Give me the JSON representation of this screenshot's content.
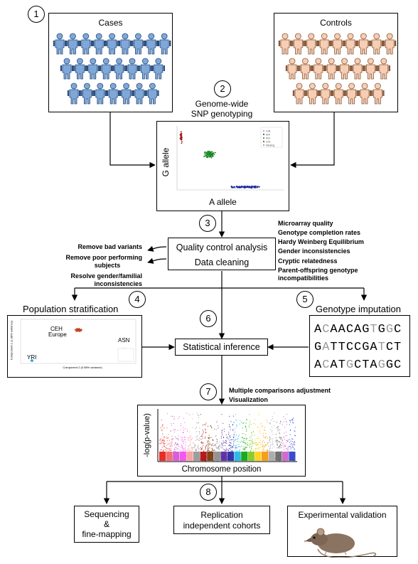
{
  "steps": [
    "1",
    "2",
    "3",
    "4",
    "5",
    "6",
    "7",
    "8"
  ],
  "cases": {
    "label": "Cases",
    "color": "#7fa8d8",
    "stroke": "#2a4f80"
  },
  "controls": {
    "label": "Controls",
    "color": "#f7cdb3",
    "stroke": "#8a5a3a"
  },
  "genotyping": {
    "title_line1": "Genome-wide",
    "title_line2": "SNP genotyping",
    "ylabel": "G allele",
    "xlabel": "A allele",
    "legend": [
      "Call",
      "A/A",
      "A/G",
      "G/G",
      "Missing"
    ]
  },
  "qc": {
    "line1": "Quality control analysis",
    "line2": "Data cleaning",
    "left_notes": [
      "Remove bad variants",
      "Remove poor performing",
      "subjects",
      "Resolve gender/familial",
      "inconsistencies"
    ],
    "right_notes": [
      "Microarray quality",
      "Genotype completion rates",
      "Hardy Weinberg Equilibrium",
      "Gender inconsistencies",
      "Cryptic relatedness",
      "Parent-offspring genotype",
      "incompatibilities"
    ]
  },
  "stratification": {
    "title": "Population stratification",
    "cluster_ceh": "CEH",
    "cluster_europe": "Europe",
    "cluster_asn": "ASN",
    "cluster_yri": "YRI",
    "xlabel": "Component 2 (0.98% variance)",
    "ylabel": "Component 1 (1.08% variance)"
  },
  "imputation": {
    "title": "Genotype imputation",
    "rows": [
      [
        [
          "A",
          "d"
        ],
        [
          "C",
          "l"
        ],
        [
          "A",
          "d"
        ],
        [
          "A",
          "d"
        ],
        [
          "C",
          "d"
        ],
        [
          "A",
          "d"
        ],
        [
          "G",
          "d"
        ],
        [
          "T",
          "l"
        ],
        [
          "G",
          "d"
        ],
        [
          "G",
          "l"
        ],
        [
          "C",
          "d"
        ]
      ],
      [
        [
          "G",
          "d"
        ],
        [
          "A",
          "l"
        ],
        [
          "T",
          "d"
        ],
        [
          "T",
          "d"
        ],
        [
          "C",
          "d"
        ],
        [
          "C",
          "d"
        ],
        [
          "G",
          "d"
        ],
        [
          "A",
          "d"
        ],
        [
          "T",
          "l"
        ],
        [
          "C",
          "d"
        ],
        [
          "T",
          "d"
        ]
      ],
      [
        [
          "A",
          "d"
        ],
        [
          "C",
          "l"
        ],
        [
          "A",
          "d"
        ],
        [
          "T",
          "d"
        ],
        [
          "G",
          "l"
        ],
        [
          "C",
          "d"
        ],
        [
          "T",
          "d"
        ],
        [
          "A",
          "d"
        ],
        [
          "G",
          "l"
        ],
        [
          "G",
          "d"
        ],
        [
          "C",
          "d"
        ]
      ]
    ]
  },
  "inference": {
    "label": "Statistical inference"
  },
  "multiple": {
    "line1": "Multiple comparisons adjustment",
    "line2": "Visualization"
  },
  "manhattan": {
    "ylabel": "-log(p-value)",
    "xlabel": "Chromosome position",
    "colors": [
      "#e8261f",
      "#f26b6b",
      "#d45bd4",
      "#f54ff0",
      "#f7a1a1",
      "#999999",
      "#b01212",
      "#7a3a10",
      "#8f8f8f",
      "#5a2ca0",
      "#2d2da6",
      "#29b6e6",
      "#11a811",
      "#86c926",
      "#ffd21a",
      "#f59a12",
      "#aaaaaa",
      "#6a6a6a",
      "#cc66cc",
      "#3344cc"
    ]
  },
  "outcomes": {
    "sequencing": [
      "Sequencing",
      "&",
      "fine-mapping"
    ],
    "replication": [
      "Replication",
      "independent cohorts"
    ],
    "validation": "Experimental validation"
  }
}
